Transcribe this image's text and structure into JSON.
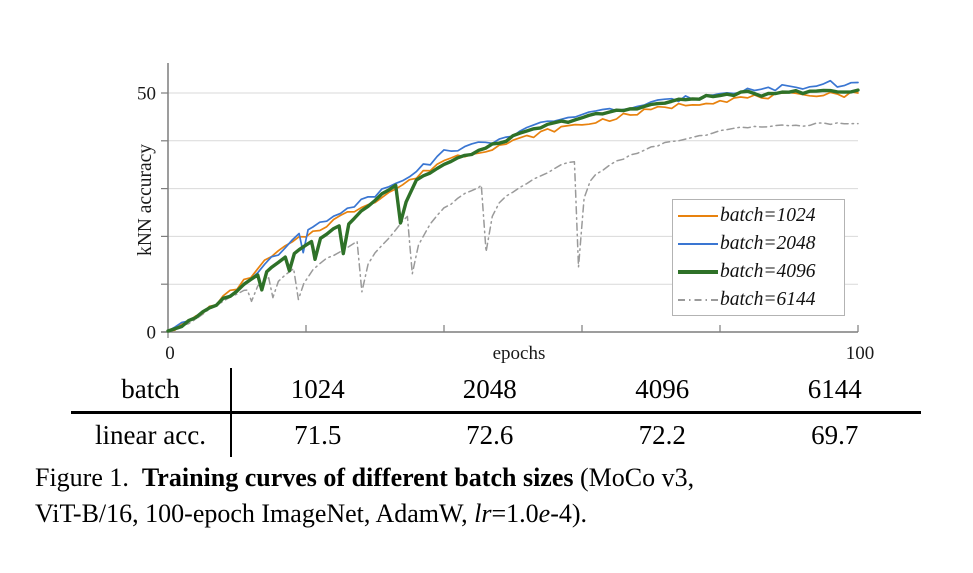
{
  "figure": {
    "caption": {
      "parts": [
        {
          "text": "Figure 1.",
          "style": "normal"
        },
        {
          "text": "Training curves of different batch sizes",
          "style": "bold"
        },
        {
          "text": " (MoCo v3,",
          "style": "normal"
        },
        {
          "text": "ViT-B/16, 100-epoch ImageNet, AdamW, ",
          "style": "normal"
        },
        {
          "text": "lr",
          "style": "italic"
        },
        {
          "text": "=1.0",
          "style": "normal"
        },
        {
          "text": "e",
          "style": "italic"
        },
        {
          "text": "-4).",
          "style": "normal"
        }
      ]
    },
    "table": {
      "header": [
        "batch",
        "1024",
        "2048",
        "4096",
        "6144"
      ],
      "values": [
        "linear acc.",
        "71.5",
        "72.6",
        "72.2",
        "69.7"
      ]
    }
  },
  "chart_data": {
    "type": "line",
    "title": "",
    "xlabel": "epochs",
    "ylabel": "kNN accuracy",
    "xlim": [
      0,
      100
    ],
    "ylim": [
      0,
      56
    ],
    "x_ticks": [
      0,
      20,
      40,
      60,
      80,
      100
    ],
    "x_tick_labels": {
      "0": "0",
      "100": "100"
    },
    "y_ticks": [
      0,
      10,
      20,
      30,
      40,
      50
    ],
    "y_tick_labels": {
      "0": "0",
      "50": "50"
    },
    "grid": "horizontal",
    "legend_position": "lower-right-inside",
    "axis_color": "#7d7d7d",
    "grid_color": "#d9d9d9",
    "label_color": "#1a1a1a",
    "draw_order": [
      3,
      0,
      1,
      2
    ],
    "series": [
      {
        "label": "batch=1024",
        "batch": 1024,
        "color": "#e8820e",
        "width": 1.7,
        "dash": "",
        "jitter": 0.55,
        "seed": 7,
        "points": [
          [
            0,
            0.2
          ],
          [
            2,
            1.4
          ],
          [
            4,
            3.0
          ],
          [
            6,
            5.1
          ],
          [
            8,
            7.2
          ],
          [
            10,
            9.3
          ],
          [
            12,
            11.8
          ],
          [
            14,
            14.6
          ],
          [
            16,
            16.8
          ],
          [
            18,
            18.6
          ],
          [
            20,
            20.2
          ],
          [
            22,
            21.6
          ],
          [
            24,
            23.4
          ],
          [
            26,
            24.8
          ],
          [
            28,
            26.2
          ],
          [
            30,
            27.6
          ],
          [
            32,
            29.2
          ],
          [
            34,
            30.8
          ],
          [
            36,
            32.4
          ],
          [
            38,
            34.2
          ],
          [
            40,
            36.0
          ],
          [
            42,
            36.8
          ],
          [
            44,
            37.4
          ],
          [
            46,
            38.2
          ],
          [
            48,
            39.0
          ],
          [
            50,
            39.8
          ],
          [
            52,
            40.8
          ],
          [
            54,
            41.6
          ],
          [
            56,
            42.4
          ],
          [
            58,
            43.0
          ],
          [
            60,
            43.4
          ],
          [
            62,
            44.0
          ],
          [
            64,
            44.6
          ],
          [
            66,
            45.2
          ],
          [
            68,
            45.8
          ],
          [
            70,
            46.4
          ],
          [
            72,
            47.0
          ],
          [
            74,
            47.4
          ],
          [
            76,
            47.8
          ],
          [
            78,
            48.2
          ],
          [
            80,
            48.4
          ],
          [
            82,
            48.8
          ],
          [
            84,
            49.0
          ],
          [
            86,
            49.2
          ],
          [
            88,
            49.4
          ],
          [
            90,
            49.6
          ],
          [
            92,
            49.2
          ],
          [
            94,
            49.8
          ],
          [
            96,
            50.0
          ],
          [
            98,
            49.6
          ],
          [
            100,
            50.0
          ]
        ]
      },
      {
        "label": "batch=2048",
        "batch": 2048,
        "color": "#3a76d2",
        "width": 1.7,
        "dash": "",
        "jitter": 0.55,
        "seed": 13,
        "points": [
          [
            0,
            0.2
          ],
          [
            2,
            1.5
          ],
          [
            4,
            3.1
          ],
          [
            6,
            5.2
          ],
          [
            8,
            7.1
          ],
          [
            10,
            9.1
          ],
          [
            12,
            11.4
          ],
          [
            14,
            14.0
          ],
          [
            16,
            16.4
          ],
          [
            18,
            19.0
          ],
          [
            19,
            21.0
          ],
          [
            19.6,
            16.6
          ],
          [
            20.3,
            21.4
          ],
          [
            22,
            22.8
          ],
          [
            24,
            24.4
          ],
          [
            26,
            26.0
          ],
          [
            28,
            27.4
          ],
          [
            30,
            28.8
          ],
          [
            32,
            30.5
          ],
          [
            34,
            32.2
          ],
          [
            36,
            33.8
          ],
          [
            38,
            35.5
          ],
          [
            40,
            37.6
          ],
          [
            42,
            38.4
          ],
          [
            44,
            39.0
          ],
          [
            46,
            39.6
          ],
          [
            48,
            40.4
          ],
          [
            50,
            41.4
          ],
          [
            52,
            42.4
          ],
          [
            54,
            43.4
          ],
          [
            56,
            44.2
          ],
          [
            58,
            45.0
          ],
          [
            60,
            45.6
          ],
          [
            62,
            46.0
          ],
          [
            64,
            46.4
          ],
          [
            66,
            46.8
          ],
          [
            68,
            47.2
          ],
          [
            70,
            47.8
          ],
          [
            72,
            48.2
          ],
          [
            74,
            48.6
          ],
          [
            76,
            49.2
          ],
          [
            78,
            49.6
          ],
          [
            80,
            50.2
          ],
          [
            82,
            50.4
          ],
          [
            84,
            50.6
          ],
          [
            86,
            50.8
          ],
          [
            88,
            51.0
          ],
          [
            90,
            51.6
          ],
          [
            92,
            51.0
          ],
          [
            94,
            51.6
          ],
          [
            96,
            52.2
          ],
          [
            98,
            51.4
          ],
          [
            100,
            52.2
          ]
        ]
      },
      {
        "label": "batch=4096",
        "batch": 4096,
        "color": "#2e7128",
        "width": 3.4,
        "dash": "",
        "jitter": 0.35,
        "seed": 3,
        "points": [
          [
            0,
            0.2
          ],
          [
            2,
            1.3
          ],
          [
            4,
            2.9
          ],
          [
            6,
            4.9
          ],
          [
            8,
            6.8
          ],
          [
            10,
            8.7
          ],
          [
            12,
            10.9
          ],
          [
            13,
            12.2
          ],
          [
            13.6,
            8.8
          ],
          [
            14.3,
            12.6
          ],
          [
            16,
            14.8
          ],
          [
            17,
            16.0
          ],
          [
            17.6,
            12.8
          ],
          [
            18.3,
            16.4
          ],
          [
            20,
            18.4
          ],
          [
            20.8,
            19.2
          ],
          [
            21.3,
            15.2
          ],
          [
            22.1,
            19.6
          ],
          [
            24,
            21.4
          ],
          [
            24.8,
            22.2
          ],
          [
            25.4,
            16.4
          ],
          [
            26.2,
            22.6
          ],
          [
            28,
            25.2
          ],
          [
            30,
            27.6
          ],
          [
            32,
            30.0
          ],
          [
            33,
            31.0
          ],
          [
            33.7,
            22.8
          ],
          [
            34.5,
            27.2
          ],
          [
            36,
            31.8
          ],
          [
            38,
            33.4
          ],
          [
            40,
            35.0
          ],
          [
            42,
            36.2
          ],
          [
            44,
            37.4
          ],
          [
            46,
            38.4
          ],
          [
            48,
            39.6
          ],
          [
            50,
            40.8
          ],
          [
            52,
            41.8
          ],
          [
            54,
            42.8
          ],
          [
            56,
            43.6
          ],
          [
            58,
            44.2
          ],
          [
            60,
            44.8
          ],
          [
            62,
            45.4
          ],
          [
            64,
            46.0
          ],
          [
            66,
            46.4
          ],
          [
            68,
            47.0
          ],
          [
            70,
            47.4
          ],
          [
            72,
            48.0
          ],
          [
            74,
            48.4
          ],
          [
            76,
            48.8
          ],
          [
            78,
            49.2
          ],
          [
            80,
            49.4
          ],
          [
            82,
            49.8
          ],
          [
            84,
            50.0
          ],
          [
            86,
            49.6
          ],
          [
            88,
            50.2
          ],
          [
            90,
            50.4
          ],
          [
            92,
            50.0
          ],
          [
            94,
            50.4
          ],
          [
            96,
            50.6
          ],
          [
            98,
            50.2
          ],
          [
            100,
            50.6
          ]
        ]
      },
      {
        "label": "batch=6144",
        "batch": 6144,
        "color": "#9a9a9a",
        "width": 1.5,
        "dash": "7 4 1.5 4",
        "jitter": 0.25,
        "seed": 21,
        "points": [
          [
            0,
            0.2
          ],
          [
            2,
            1.2
          ],
          [
            4,
            2.7
          ],
          [
            6,
            4.6
          ],
          [
            8,
            6.4
          ],
          [
            10,
            8.0
          ],
          [
            11.5,
            9.0
          ],
          [
            12.1,
            6.4
          ],
          [
            13,
            9.6
          ],
          [
            14.6,
            11.2
          ],
          [
            15.2,
            7.2
          ],
          [
            16,
            10.6
          ],
          [
            17,
            12.0
          ],
          [
            18.2,
            13.4
          ],
          [
            18.9,
            6.8
          ],
          [
            19.7,
            10.2
          ],
          [
            21,
            13.0
          ],
          [
            22,
            14.4
          ],
          [
            24,
            16.1
          ],
          [
            26,
            17.6
          ],
          [
            27.4,
            18.8
          ],
          [
            28.1,
            8.4
          ],
          [
            29,
            14.2
          ],
          [
            30,
            16.6
          ],
          [
            32,
            19.8
          ],
          [
            34,
            23.0
          ],
          [
            34.7,
            24.0
          ],
          [
            35.4,
            12.2
          ],
          [
            36.3,
            18.2
          ],
          [
            38,
            22.6
          ],
          [
            40,
            25.8
          ],
          [
            42,
            28.0
          ],
          [
            44,
            29.6
          ],
          [
            45.4,
            30.6
          ],
          [
            46.1,
            16.8
          ],
          [
            47,
            24.2
          ],
          [
            48,
            27.0
          ],
          [
            50,
            29.4
          ],
          [
            52,
            31.2
          ],
          [
            54,
            32.8
          ],
          [
            56,
            34.2
          ],
          [
            58,
            35.4
          ],
          [
            58.9,
            35.8
          ],
          [
            59.5,
            13.6
          ],
          [
            60.3,
            28.0
          ],
          [
            61.2,
            31.6
          ],
          [
            62,
            33.0
          ],
          [
            64,
            35.0
          ],
          [
            66,
            36.4
          ],
          [
            68,
            37.6
          ],
          [
            70,
            38.6
          ],
          [
            72,
            39.4
          ],
          [
            74,
            40.2
          ],
          [
            76,
            40.8
          ],
          [
            78,
            41.4
          ],
          [
            80,
            42.0
          ],
          [
            82,
            42.4
          ],
          [
            84,
            42.8
          ],
          [
            86,
            43.0
          ],
          [
            88,
            43.2
          ],
          [
            90,
            43.4
          ],
          [
            92,
            43.2
          ],
          [
            94,
            43.6
          ],
          [
            96,
            43.4
          ],
          [
            98,
            43.8
          ],
          [
            100,
            43.6
          ]
        ]
      }
    ]
  }
}
